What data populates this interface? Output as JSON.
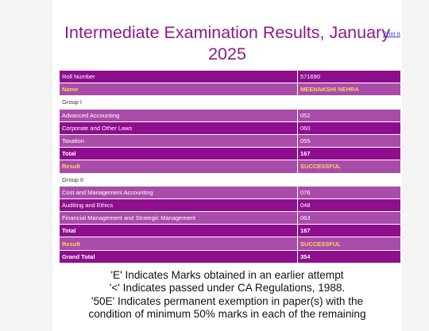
{
  "title": "Intermediate Examination Results, January 2025",
  "print_label": "Print it",
  "rows": [
    {
      "style": "dark",
      "label": "Roll Number",
      "value": "571690"
    },
    {
      "style": "light yellow",
      "label": "Name",
      "value": "MEENAKSHI NEHRA"
    },
    {
      "style": "group",
      "label": "Group I",
      "value": ""
    },
    {
      "style": "light",
      "label": "Advanced Accounting",
      "value": "052"
    },
    {
      "style": "dark",
      "label": "Corporate and Other Laws",
      "value": "060"
    },
    {
      "style": "light",
      "label": "Taxation",
      "value": "055"
    },
    {
      "style": "dark bold",
      "label": "Total",
      "value": "167"
    },
    {
      "style": "light yellow",
      "label": "Result",
      "value": "SUCCESSFUL"
    },
    {
      "style": "group",
      "label": "Group II",
      "value": ""
    },
    {
      "style": "light",
      "label": "Cost and Management Accounting",
      "value": "076"
    },
    {
      "style": "dark",
      "label": "Auditing and Ethics",
      "value": "048"
    },
    {
      "style": "light",
      "label": "Financial Management and Strategic Management",
      "value": "063"
    },
    {
      "style": "dark bold",
      "label": "Total",
      "value": "187"
    },
    {
      "style": "light yellow",
      "label": "Result",
      "value": "SUCCESSFUL"
    },
    {
      "style": "dark bold",
      "label": "Grand Total",
      "value": "354"
    }
  ],
  "notes": [
    "'E' Indicates Marks obtained in an earlier attempt",
    "'<' Indicates passed under CA Regulations, 1988.",
    "'50E' Indicates permanent exemption in paper(s) with the",
    "condition of minimum 50% marks in each of the remaining"
  ],
  "colors": {
    "title": "#8b1a8b",
    "row_dark": "#8e0e8e",
    "row_light": "#a94ca9",
    "highlight_text": "#ffd35a"
  }
}
